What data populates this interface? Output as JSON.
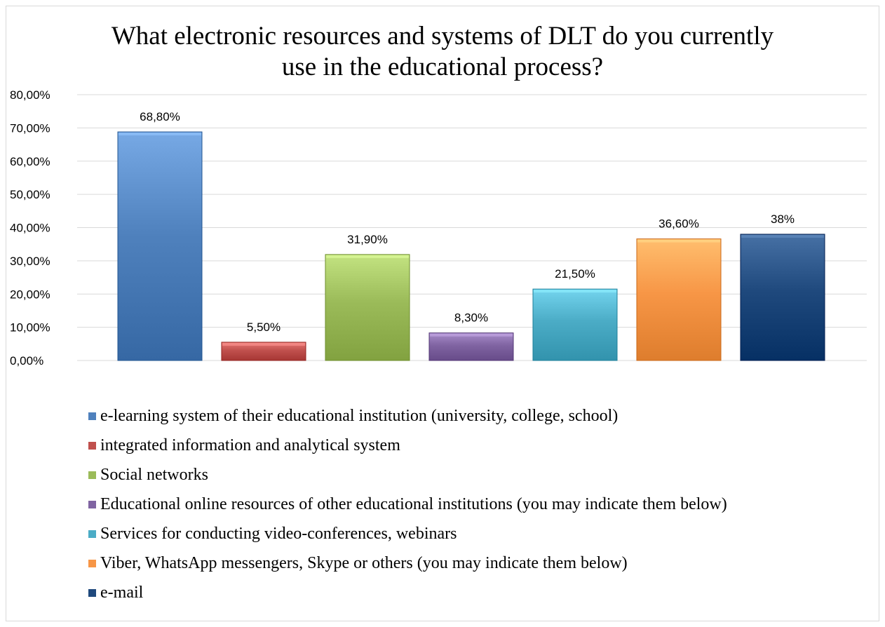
{
  "title_lines": [
    "What electronic resources and systems of DLT do you currently",
    "use in the educational process?"
  ],
  "chart_data": {
    "type": "bar",
    "title": "What electronic resources and systems of DLT do you currently use in the educational process?",
    "categories": [
      "e-learning system of their educational institution (university, college, school)",
      "integrated information and analytical system",
      "Social networks",
      "Educational online resources of other educational institutions (you may indicate them below)",
      "Services for conducting video-conferences, webinars",
      "Viber, WhatsApp messengers, Skype or others (you may indicate them below)",
      "e-mail"
    ],
    "values": [
      68.8,
      5.5,
      31.9,
      8.3,
      21.5,
      36.6,
      38
    ],
    "data_labels": [
      "68,80%",
      "5,50%",
      "31,90%",
      "8,30%",
      "21,50%",
      "36,60%",
      "38%"
    ],
    "colors": [
      "#4f81bd",
      "#c0504d",
      "#9bbb59",
      "#8064a2",
      "#4bacc6",
      "#f79646",
      "#1f497d"
    ],
    "ylim": [
      0,
      80
    ],
    "yticks": [
      0,
      10,
      20,
      30,
      40,
      50,
      60,
      70,
      80
    ],
    "ytick_labels": [
      "0,00%",
      "10,00%",
      "20,00%",
      "30,00%",
      "40,00%",
      "50,00%",
      "60,00%",
      "70,00%",
      "80,00%"
    ],
    "grid": true,
    "legend_position": "bottom"
  }
}
